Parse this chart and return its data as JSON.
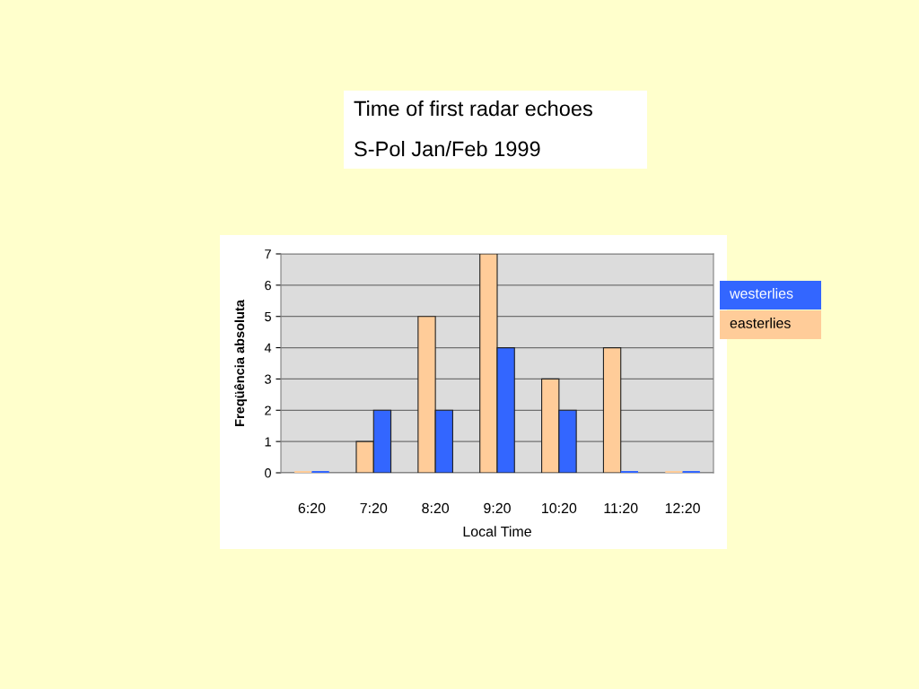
{
  "chart_data": {
    "type": "bar",
    "title": "Time of first radar echoes",
    "subtitle": "S-Pol Jan/Feb 1999",
    "xlabel": "Local Time",
    "ylabel": "Freqüência absoluta",
    "categories": [
      "6:20",
      "7:20",
      "8:20",
      "9:20",
      "10:20",
      "11:20",
      "12:20"
    ],
    "series": [
      {
        "name": "easterlies",
        "color": "#ffcc99",
        "values": [
          0,
          1,
          5,
          7,
          3,
          4,
          0
        ]
      },
      {
        "name": "westerlies",
        "color": "#3366ff",
        "values": [
          0,
          2,
          2,
          4,
          2,
          0,
          0
        ]
      }
    ],
    "ylim": [
      0,
      7
    ],
    "yticks": [
      0,
      1,
      2,
      3,
      4,
      5,
      6,
      7
    ],
    "grid": "y",
    "legend": "right"
  }
}
